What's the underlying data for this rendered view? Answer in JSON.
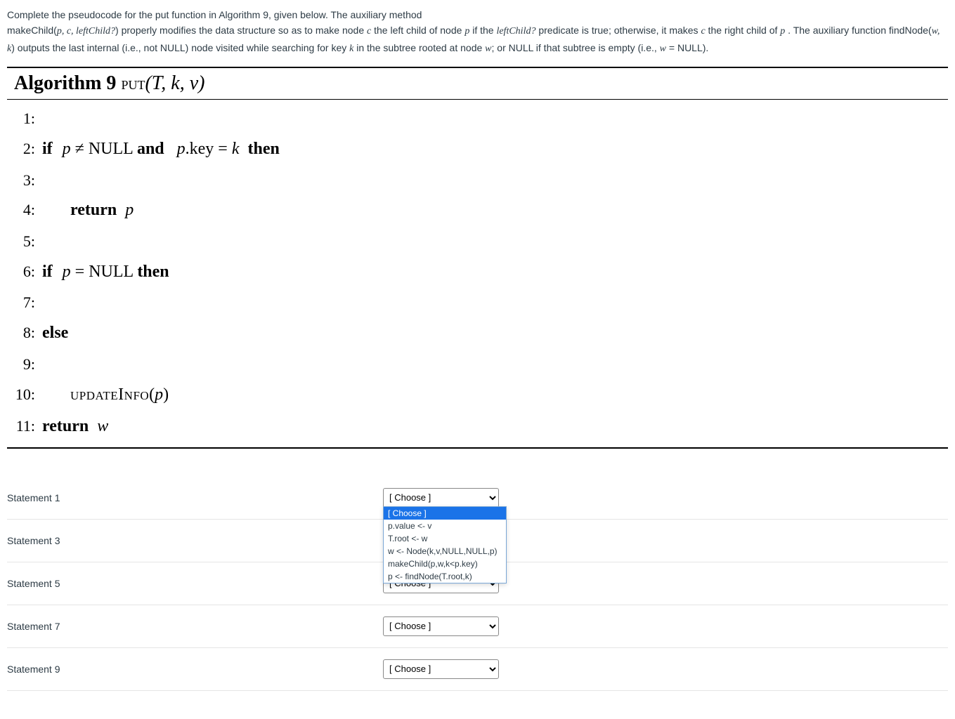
{
  "intro": {
    "line1": "Complete the pseudocode for the put function in Algorithm 9, given below. The auxiliary method",
    "line2_pre": "makeChild(",
    "line2_args": "p, c, leftChild?",
    "line2_mid1": ") properly modifies the data structure so as to make node ",
    "line2_c": "c",
    "line2_mid2": " the left child of node ",
    "line2_p": "p",
    "line2_mid3": " if the ",
    "line2_lc": "leftChild?",
    "line2_mid4": " predicate is true; otherwise, it makes ",
    "line2_c2": "c",
    "line2_mid5": " the right child of ",
    "line2_p2": "p",
    "line2_mid6": " . The auxiliary function findNode(",
    "line2_wk": "w, k",
    "line2_mid7": ") outputs the last internal (i.e., not NULL) node visited while searching for key ",
    "line2_k": "k",
    "line2_mid8": " in the subtree rooted at node ",
    "line2_w": "w",
    "line2_mid9": "; or NULL if that subtree is empty (i.e., ",
    "line2_weq": "w",
    "line2_mid10": " = NULL)."
  },
  "algo": {
    "heading_label": "Algorithm 9",
    "fn_small": "put",
    "fn_args": "(T, k, v)",
    "lines": {
      "l1": "1:",
      "l2": "2:",
      "l3": "3:",
      "l4": "4:",
      "l5": "5:",
      "l6": "6:",
      "l7": "7:",
      "l8": "8:",
      "l9": "9:",
      "l10": "10:",
      "l11": "11:"
    },
    "tok": {
      "if": "if",
      "and": "and",
      "then": "then",
      "else": "else",
      "return": "return",
      "p": "p",
      "k": "k",
      "w": "w",
      "neq": " ≠ NULL ",
      "pkey": "p.key = ",
      "eqnull": " = NULL ",
      "updateinfo": "updateInfo",
      "openp": "(",
      "closep": ")"
    }
  },
  "statements": [
    {
      "label": "Statement 1"
    },
    {
      "label": "Statement 3"
    },
    {
      "label": "Statement 5"
    },
    {
      "label": "Statement 7"
    },
    {
      "label": "Statement 9"
    }
  ],
  "dropdown": {
    "placeholder": "[ Choose ]",
    "options": [
      "[ Choose ]",
      "p.value <- v",
      "T.root <- w",
      "w <- Node(k,v,NULL,NULL,p)",
      "makeChild(p,w,k<p.key)",
      "p <- findNode(T.root,k)"
    ],
    "open_on_index": 0,
    "selected_option_index": 0
  },
  "colors": {
    "text": "#2d3b45",
    "rule": "#e5e5e5",
    "dropdown_sel_bg": "#1a73e8",
    "dropdown_border": "#7aa7d6"
  }
}
